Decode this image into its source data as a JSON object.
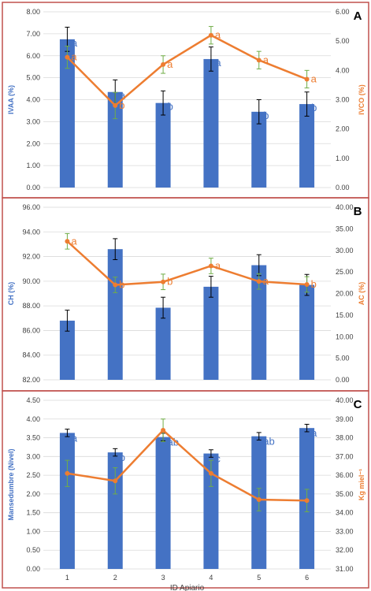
{
  "colors": {
    "bar": "#4472C4",
    "line": "#ED7D31",
    "line_err": "#70AD47",
    "bar_err": "#000000",
    "grid": "#D9D9D9",
    "frame": "#C0504D",
    "left_label": "#4472C4",
    "right_label": "#ED7D31"
  },
  "xlabel": "ID Apiario",
  "chart_data": [
    {
      "type": "bar",
      "panel": "A",
      "categories": [
        "1",
        "2",
        "3",
        "4",
        "5",
        "6"
      ],
      "ylabel": "IVAA (%)",
      "ylim": [
        0,
        8
      ],
      "yticks": [
        "0.00",
        "1.00",
        "2.00",
        "3.00",
        "4.00",
        "5.00",
        "6.00",
        "7.00",
        "8.00"
      ],
      "y2label": "IVCO (%)",
      "y2lim": [
        0,
        6
      ],
      "y2ticks": [
        "0.00",
        "1.00",
        "2.00",
        "3.00",
        "4.00",
        "5.00",
        "6.00"
      ],
      "grid": true,
      "series": [
        {
          "kind": "bar",
          "axis": "left",
          "values": [
            6.75,
            4.35,
            3.85,
            5.85,
            3.45,
            3.8
          ],
          "errors": [
            0.55,
            0.55,
            0.55,
            0.55,
            0.55,
            0.55
          ],
          "labels": [
            "a",
            "a",
            "b",
            "a",
            "b",
            "b"
          ]
        },
        {
          "kind": "line",
          "axis": "right",
          "values": [
            4.45,
            2.8,
            4.2,
            5.2,
            4.35,
            3.7
          ],
          "errors": [
            0.38,
            0.45,
            0.3,
            0.3,
            0.3,
            0.3
          ],
          "labels": [
            "a",
            "b",
            "a",
            "a",
            "a",
            "a"
          ]
        }
      ]
    },
    {
      "type": "bar",
      "panel": "B",
      "categories": [
        "1",
        "2",
        "3",
        "4",
        "5",
        "6"
      ],
      "ylabel": "CH (%)",
      "ylim": [
        82,
        96
      ],
      "yticks": [
        "82.00",
        "84.00",
        "86.00",
        "88.00",
        "90.00",
        "92.00",
        "94.00",
        "96.00"
      ],
      "y2label": "AC (%)",
      "y2lim": [
        0,
        40
      ],
      "y2ticks": [
        "0.00",
        "5.00",
        "10.00",
        "15.00",
        "20.00",
        "25.00",
        "30.00",
        "35.00",
        "40.00"
      ],
      "grid": true,
      "series": [
        {
          "kind": "bar",
          "axis": "left",
          "values": [
            86.8,
            92.6,
            87.85,
            89.55,
            91.3,
            89.7
          ],
          "errors": [
            0.85,
            0.85,
            0.85,
            0.85,
            0.85,
            0.85
          ],
          "labels": []
        },
        {
          "kind": "line",
          "axis": "right",
          "values": [
            32.1,
            22.0,
            22.7,
            26.4,
            22.8,
            22.1
          ],
          "errors": [
            1.8,
            1.8,
            1.8,
            1.8,
            1.8,
            1.8
          ],
          "labels": [
            "a",
            "b",
            "b",
            "a",
            "a",
            "b"
          ]
        }
      ]
    },
    {
      "type": "bar",
      "panel": "C",
      "categories": [
        "1",
        "2",
        "3",
        "4",
        "5",
        "6"
      ],
      "ylabel": "Mansedumbre (Nivel)",
      "ylim": [
        0,
        4.5
      ],
      "yticks": [
        "0.00",
        "0.50",
        "1.00",
        "1.50",
        "2.00",
        "2.50",
        "3.00",
        "3.50",
        "4.00",
        "4.50"
      ],
      "y2label": "Kg miel⁻¹",
      "y2lim": [
        31,
        40
      ],
      "y2ticks": [
        "31.00",
        "32.00",
        "33.00",
        "34.00",
        "35.00",
        "36.00",
        "37.00",
        "38.00",
        "39.00",
        "40.00"
      ],
      "grid": true,
      "series": [
        {
          "kind": "bar",
          "axis": "left",
          "values": [
            3.63,
            3.11,
            3.52,
            3.08,
            3.54,
            3.76
          ],
          "errors": [
            0.1,
            0.1,
            0.1,
            0.1,
            0.1,
            0.1
          ],
          "labels": [
            "a",
            "b",
            "ab",
            "c",
            "ab",
            "a"
          ]
        },
        {
          "kind": "line",
          "axis": "right",
          "values": [
            36.1,
            35.7,
            38.4,
            36.1,
            34.7,
            34.65
          ],
          "errors": [
            0.7,
            0.7,
            0.6,
            0.7,
            0.6,
            0.6
          ],
          "labels": []
        }
      ]
    }
  ]
}
